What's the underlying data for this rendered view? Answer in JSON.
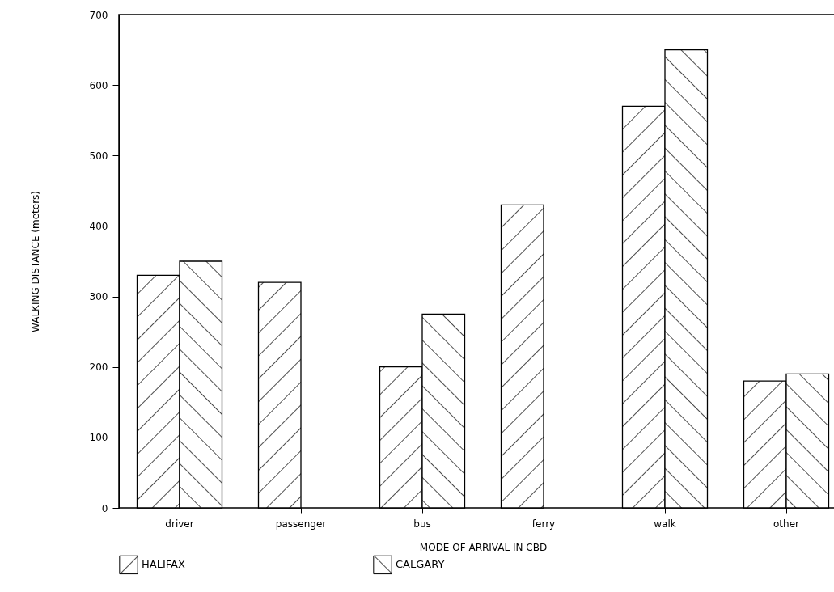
{
  "chart_data": {
    "type": "bar",
    "xlabel": "MODE OF ARRIVAL IN CBD",
    "ylabel": "WALKING DISTANCE (meters)",
    "categories": [
      "driver",
      "passenger",
      "bus",
      "ferry",
      "walk",
      "other"
    ],
    "series": [
      {
        "name": "HALIFAX",
        "color": "#000000",
        "values": [
          330,
          320,
          200,
          430,
          570,
          180
        ]
      },
      {
        "name": "CALGARY",
        "color": "#000000",
        "values": [
          350,
          null,
          275,
          null,
          650,
          190
        ]
      }
    ],
    "ylim": [
      0,
      700
    ],
    "yticks": [
      0,
      100,
      200,
      300,
      400,
      500,
      600,
      700
    ],
    "grid": false,
    "legend": "bottom"
  }
}
